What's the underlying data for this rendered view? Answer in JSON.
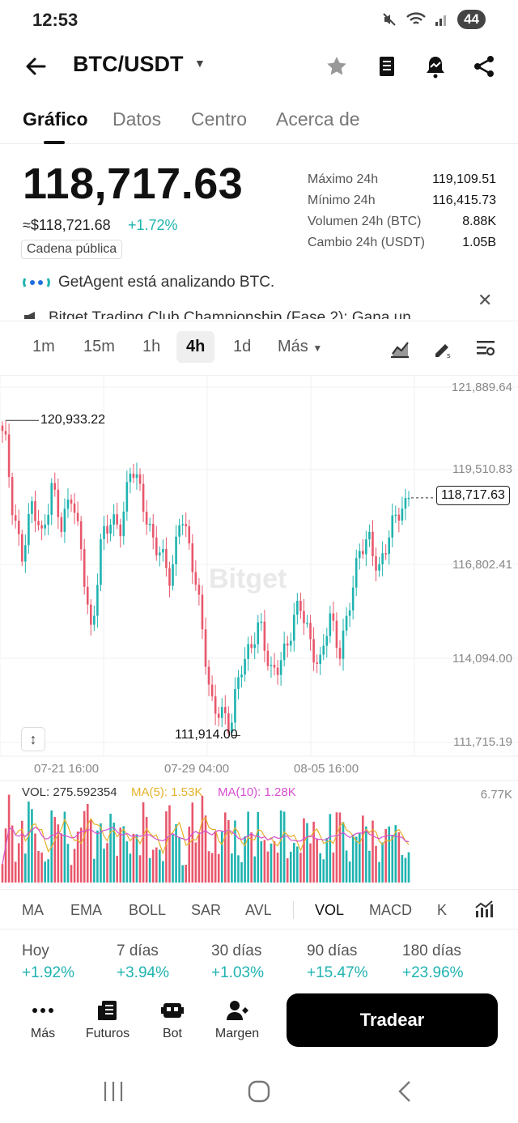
{
  "status_bar": {
    "time": "12:53",
    "battery": "44"
  },
  "header": {
    "pair": "BTC/USDT"
  },
  "tabs": [
    "Gráfico",
    "Datos",
    "Centro",
    "Acerca de"
  ],
  "price": {
    "last": "118,717.63",
    "usd": "≈$118,721.68",
    "change": "+1.72%",
    "badge": "Cadena pública"
  },
  "stats": [
    {
      "label": "Máximo 24h",
      "value": "119,109.51"
    },
    {
      "label": "Mínimo 24h",
      "value": "116,415.73"
    },
    {
      "label": "Volumen 24h (BTC)",
      "value": "8.88K"
    },
    {
      "label": "Cambio 24h (USDT)",
      "value": "1.05B"
    }
  ],
  "notices": {
    "agent": "GetAgent está analizando BTC.",
    "club": "Bitget Trading Club Championship (Fase 2): Gana un"
  },
  "timeframes": [
    "1m",
    "15m",
    "1h",
    "4h",
    "1d",
    "Más"
  ],
  "active_timeframe": "4h",
  "chart": {
    "y_labels": [
      "121,889.64",
      "119,510.83",
      "116,802.41",
      "114,094.00",
      "111,715.19"
    ],
    "x_labels": [
      "07-21 16:00",
      "07-29 04:00",
      "08-05 16:00"
    ],
    "high_marker": "120,933.22",
    "low_marker": "111,914.00",
    "current": "118,717.63",
    "watermark": "Bitget",
    "vol_text": "VOL: 275.592354",
    "ma5_text": "MA(5): 1.53K",
    "ma10_text": "MA(10): 1.28K",
    "vol_max": "6.77K",
    "colors": {
      "up": "#1fb3b0",
      "down": "#e8576c",
      "ma5": "#e6b12b",
      "ma10": "#d64fd0"
    }
  },
  "chart_data": {
    "type": "candlestick",
    "y_range": [
      111715.19,
      121889.64
    ],
    "x_range_labels": [
      "07-21 16:00",
      "07-29 04:00",
      "08-05 16:00"
    ],
    "waypoints": [
      120933,
      118500,
      117200,
      118400,
      117500,
      119300,
      117800,
      118700,
      117300,
      114700,
      117400,
      118200,
      118000,
      119500,
      118800,
      117800,
      117000,
      116200,
      118600,
      117100,
      115200,
      113000,
      112700,
      111914,
      113900,
      114600,
      115000,
      113600,
      114200,
      114700,
      115600,
      114800,
      113900,
      115200,
      114300,
      115800,
      117000,
      117500,
      116800,
      117600,
      118200,
      118717.63
    ],
    "high": 120933.22,
    "low": 111914.0,
    "last": 118717.63
  },
  "indicators": [
    "MA",
    "EMA",
    "BOLL",
    "SAR",
    "AVL",
    "VOL",
    "MACD",
    "K"
  ],
  "active_indicator": "VOL",
  "performance": [
    {
      "label": "Hoy",
      "value": "+1.92%"
    },
    {
      "label": "7 días",
      "value": "+3.94%"
    },
    {
      "label": "30 días",
      "value": "+1.03%"
    },
    {
      "label": "90 días",
      "value": "+15.47%"
    },
    {
      "label": "180 días",
      "value": "+23.96%"
    }
  ],
  "actions": [
    "Más",
    "Futuros",
    "Bot",
    "Margen"
  ],
  "trade_label": "Tradear"
}
